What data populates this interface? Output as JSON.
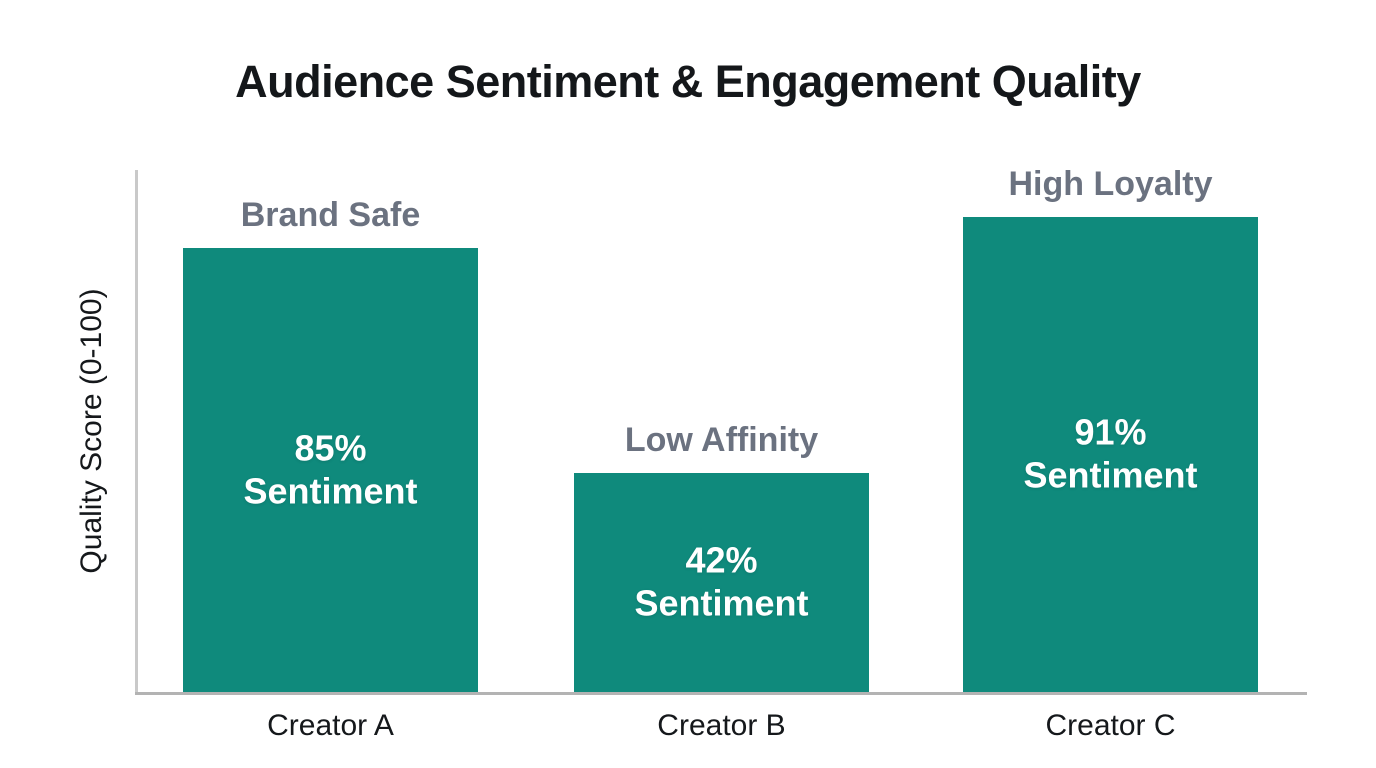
{
  "chart_data": {
    "type": "bar",
    "title": "Audience Sentiment & Engagement Quality",
    "ylabel": "Quality Score (0-100)",
    "xlabel": "",
    "ylim": [
      0,
      100
    ],
    "grid": false,
    "legend": false,
    "bar_color": "#0f8a7c",
    "annotation_color": "#6b7280",
    "categories": [
      "Creator A",
      "Creator B",
      "Creator C"
    ],
    "values": [
      85,
      42,
      91
    ],
    "bars": [
      {
        "category": "Creator A",
        "value": 85,
        "annotation": "Brand Safe",
        "value_label": "85%",
        "value_sublabel": "Sentiment"
      },
      {
        "category": "Creator B",
        "value": 42,
        "annotation": "Low Affinity",
        "value_label": "42%",
        "value_sublabel": "Sentiment"
      },
      {
        "category": "Creator C",
        "value": 91,
        "annotation": "High Loyalty",
        "value_label": "91%",
        "value_sublabel": "Sentiment"
      }
    ]
  }
}
